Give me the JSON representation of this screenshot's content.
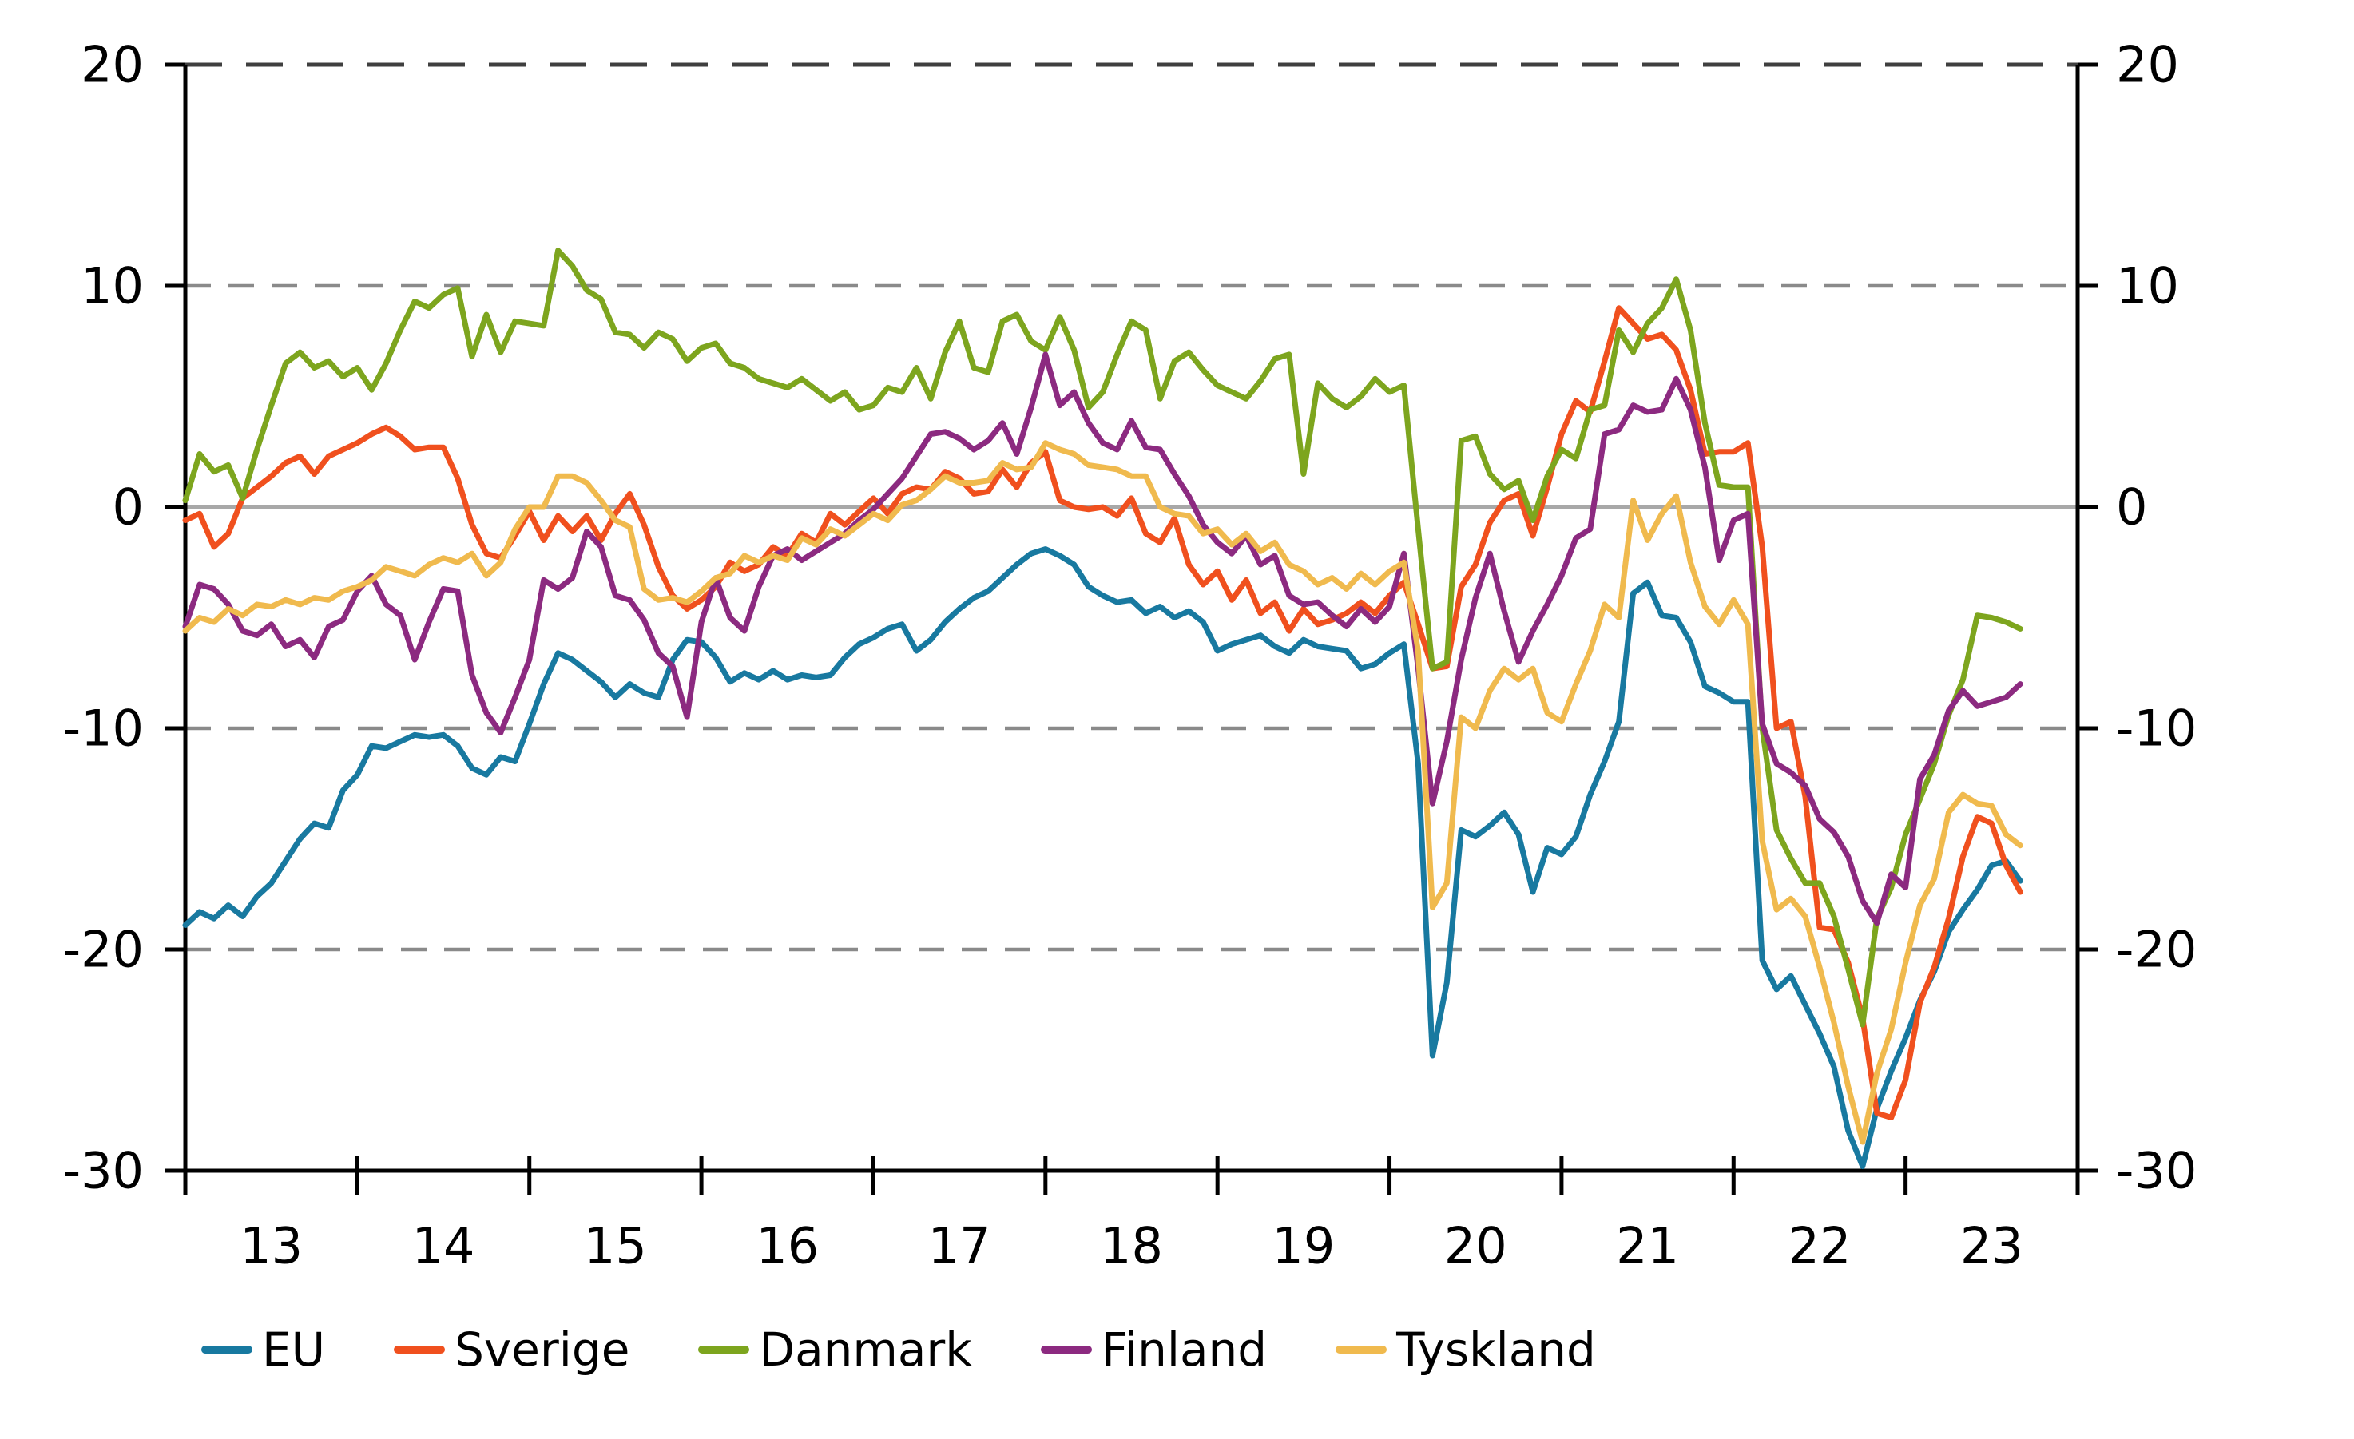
{
  "chart_data": {
    "type": "line",
    "title": "",
    "x_axis": {
      "start_month": "2013-01",
      "end_month": "2023-09",
      "axis_start_year": 2013,
      "axis_end_year": 2024,
      "tick_labels": [
        "13",
        "14",
        "15",
        "16",
        "17",
        "18",
        "19",
        "20",
        "21",
        "22",
        "23"
      ]
    },
    "y_axis": {
      "min": -30,
      "max": 20,
      "ticks": [
        20,
        10,
        0,
        -10,
        -20,
        -30
      ],
      "dashed_gridlines": [
        10,
        -10,
        -20
      ],
      "top_dashed_gridline": 20,
      "zero_line": 0
    },
    "style": {
      "frame_color": "#000000",
      "grid_color": "#8a8a8a",
      "top_grid_color": "#3f3f3f",
      "zero_line_color": "#a8a8a8",
      "background": "#ffffff"
    },
    "series": [
      {
        "name": "EU",
        "color": "#1879a0",
        "values": [
          -18.9,
          -18.3,
          -18.6,
          -18.0,
          -18.5,
          -17.6,
          -17.0,
          -16.0,
          -15.0,
          -14.3,
          -14.5,
          -12.8,
          -12.1,
          -10.8,
          -10.9,
          -10.6,
          -10.3,
          -10.4,
          -10.3,
          -10.8,
          -11.8,
          -12.1,
          -11.3,
          -11.5,
          -9.8,
          -8.0,
          -6.6,
          -6.9,
          -7.4,
          -7.9,
          -8.6,
          -8.0,
          -8.4,
          -8.6,
          -6.9,
          -6.0,
          -6.1,
          -6.8,
          -7.9,
          -7.5,
          -7.8,
          -7.4,
          -7.8,
          -7.6,
          -7.7,
          -7.6,
          -6.8,
          -6.2,
          -5.9,
          -5.5,
          -5.3,
          -6.5,
          -6.0,
          -5.2,
          -4.6,
          -4.1,
          -3.8,
          -3.2,
          -2.6,
          -2.1,
          -1.9,
          -2.2,
          -2.6,
          -3.6,
          -4.0,
          -4.3,
          -4.2,
          -4.8,
          -4.5,
          -5.0,
          -4.7,
          -5.2,
          -6.5,
          -6.2,
          -6.0,
          -5.8,
          -6.3,
          -6.6,
          -6.0,
          -6.3,
          -6.4,
          -6.5,
          -7.3,
          -7.1,
          -6.6,
          -6.2,
          -11.6,
          -24.8,
          -21.5,
          -14.6,
          -14.9,
          -14.4,
          -13.8,
          -14.8,
          -17.4,
          -15.4,
          -15.7,
          -14.9,
          -13.0,
          -11.5,
          -9.7,
          -3.9,
          -3.4,
          -4.9,
          -5.0,
          -6.1,
          -8.1,
          -8.4,
          -8.8,
          -8.8,
          -20.5,
          -21.8,
          -21.2,
          -22.5,
          -23.8,
          -25.3,
          -28.2,
          -29.8,
          -27.2,
          -25.5,
          -24.0,
          -22.3,
          -21.0,
          -19.2,
          -18.2,
          -17.3,
          -16.2,
          -16.0,
          -16.9
        ]
      },
      {
        "name": "Sverige",
        "color": "#f0501e",
        "values": [
          -0.6,
          -0.3,
          -1.8,
          -1.2,
          0.4,
          0.9,
          1.4,
          2.0,
          2.3,
          1.5,
          2.3,
          2.6,
          2.9,
          3.3,
          3.6,
          3.2,
          2.6,
          2.7,
          2.7,
          1.3,
          -0.8,
          -2.1,
          -2.3,
          -1.3,
          -0.2,
          -1.5,
          -0.4,
          -1.1,
          -0.4,
          -1.5,
          -0.3,
          0.6,
          -0.8,
          -2.7,
          -4.0,
          -4.6,
          -4.2,
          -3.6,
          -2.5,
          -2.9,
          -2.6,
          -1.8,
          -2.2,
          -1.2,
          -1.6,
          -0.3,
          -0.8,
          -0.2,
          0.4,
          -0.3,
          0.6,
          0.9,
          0.8,
          1.6,
          1.3,
          0.6,
          0.7,
          1.7,
          0.9,
          2.0,
          2.5,
          0.3,
          0.0,
          -0.1,
          0.0,
          -0.4,
          0.4,
          -1.2,
          -1.6,
          -0.5,
          -2.6,
          -3.5,
          -2.9,
          -4.2,
          -3.3,
          -4.8,
          -4.3,
          -5.6,
          -4.6,
          -5.3,
          -5.1,
          -4.8,
          -4.3,
          -4.8,
          -4.0,
          -3.4,
          -5.3,
          -7.3,
          -7.2,
          -3.6,
          -2.6,
          -0.7,
          0.3,
          0.6,
          -1.3,
          0.9,
          3.3,
          4.8,
          4.3,
          6.6,
          9.0,
          8.3,
          7.6,
          7.8,
          7.1,
          5.3,
          2.4,
          2.5,
          2.5,
          2.9,
          -1.8,
          -10.0,
          -9.7,
          -13.1,
          -19.0,
          -19.1,
          -20.6,
          -23.1,
          -27.4,
          -27.6,
          -25.9,
          -22.4,
          -20.8,
          -18.6,
          -15.8,
          -14.0,
          -14.3,
          -16.2,
          -17.4
        ]
      },
      {
        "name": "Danmark",
        "color": "#7da51e",
        "values": [
          0.3,
          2.4,
          1.6,
          1.9,
          0.4,
          2.6,
          4.6,
          6.5,
          7.0,
          6.3,
          6.6,
          5.9,
          6.3,
          5.3,
          6.5,
          8.0,
          9.3,
          9.0,
          9.6,
          9.9,
          6.8,
          8.7,
          7.0,
          8.4,
          8.3,
          8.2,
          11.6,
          10.9,
          9.8,
          9.4,
          7.9,
          7.8,
          7.2,
          7.9,
          7.6,
          6.6,
          7.2,
          7.4,
          6.5,
          6.3,
          5.8,
          5.6,
          5.4,
          5.8,
          5.3,
          4.8,
          5.2,
          4.4,
          4.6,
          5.4,
          5.2,
          6.3,
          4.9,
          7.0,
          8.4,
          6.3,
          6.1,
          8.4,
          8.7,
          7.5,
          7.1,
          8.6,
          7.1,
          4.5,
          5.2,
          6.9,
          8.4,
          8.0,
          4.9,
          6.6,
          7.0,
          6.2,
          5.5,
          5.2,
          4.9,
          5.7,
          6.7,
          6.9,
          1.5,
          5.6,
          4.9,
          4.5,
          5.0,
          5.8,
          5.2,
          5.5,
          -1.0,
          -7.3,
          -7.0,
          3.0,
          3.2,
          1.5,
          0.8,
          1.2,
          -0.6,
          1.4,
          2.6,
          2.2,
          4.4,
          4.6,
          8.0,
          7.0,
          8.3,
          9.0,
          10.3,
          8.0,
          3.8,
          1.0,
          0.9,
          0.9,
          -10.0,
          -14.6,
          -15.9,
          -17.0,
          -17.0,
          -18.5,
          -20.9,
          -23.4,
          -18.6,
          -17.2,
          -14.8,
          -13.2,
          -11.6,
          -9.4,
          -7.8,
          -4.9,
          -5.0,
          -5.2,
          -5.5
        ]
      },
      {
        "name": "Finland",
        "color": "#8c2a80",
        "values": [
          -5.4,
          -3.5,
          -3.7,
          -4.4,
          -5.6,
          -5.8,
          -5.3,
          -6.3,
          -6.0,
          -6.8,
          -5.4,
          -5.1,
          -3.8,
          -3.1,
          -4.4,
          -4.9,
          -6.9,
          -5.2,
          -3.7,
          -3.8,
          -7.6,
          -9.3,
          -10.2,
          -8.6,
          -6.9,
          -3.3,
          -3.7,
          -3.2,
          -1.1,
          -1.8,
          -4.0,
          -4.2,
          -5.1,
          -6.6,
          -7.2,
          -9.5,
          -5.2,
          -3.2,
          -5.0,
          -5.6,
          -3.6,
          -2.2,
          -1.9,
          -2.4,
          -2.0,
          -1.6,
          -1.2,
          -0.6,
          -0.1,
          0.6,
          1.3,
          2.3,
          3.3,
          3.4,
          3.1,
          2.6,
          3.0,
          3.8,
          2.4,
          4.5,
          6.9,
          4.6,
          5.2,
          3.8,
          2.9,
          2.6,
          3.9,
          2.7,
          2.6,
          1.5,
          0.5,
          -0.8,
          -1.6,
          -2.1,
          -1.3,
          -2.6,
          -2.2,
          -4.0,
          -4.4,
          -4.3,
          -4.9,
          -5.4,
          -4.6,
          -5.2,
          -4.5,
          -2.1,
          -7.3,
          -13.4,
          -10.6,
          -6.9,
          -4.1,
          -2.1,
          -4.7,
          -7.0,
          -5.6,
          -4.4,
          -3.1,
          -1.4,
          -1.0,
          3.3,
          3.5,
          4.6,
          4.3,
          4.4,
          5.8,
          4.4,
          1.8,
          -2.4,
          -0.6,
          -0.3,
          -9.8,
          -11.6,
          -12.0,
          -12.6,
          -14.1,
          -14.7,
          -15.8,
          -17.8,
          -18.8,
          -16.6,
          -17.2,
          -12.3,
          -11.2,
          -9.2,
          -8.3,
          -9.0,
          -8.8,
          -8.6,
          -8.0
        ]
      },
      {
        "name": "Tyskland",
        "color": "#f0ba4e",
        "values": [
          -5.6,
          -5.0,
          -5.2,
          -4.6,
          -4.9,
          -4.4,
          -4.5,
          -4.2,
          -4.4,
          -4.1,
          -4.2,
          -3.8,
          -3.6,
          -3.3,
          -2.7,
          -2.9,
          -3.1,
          -2.6,
          -2.3,
          -2.5,
          -2.1,
          -3.1,
          -2.5,
          -1.0,
          0.0,
          0.0,
          1.4,
          1.4,
          1.1,
          0.3,
          -0.6,
          -0.9,
          -3.7,
          -4.2,
          -4.1,
          -4.3,
          -3.8,
          -3.2,
          -3.0,
          -2.2,
          -2.5,
          -2.2,
          -2.4,
          -1.4,
          -1.7,
          -1.0,
          -1.3,
          -0.8,
          -0.3,
          -0.6,
          0.1,
          0.3,
          0.8,
          1.4,
          1.1,
          1.1,
          1.2,
          2.0,
          1.7,
          1.8,
          2.9,
          2.6,
          2.4,
          1.9,
          1.8,
          1.7,
          1.4,
          1.4,
          0.0,
          -0.3,
          -0.4,
          -1.2,
          -1.0,
          -1.7,
          -1.2,
          -2.0,
          -1.6,
          -2.6,
          -2.9,
          -3.5,
          -3.2,
          -3.7,
          -3.0,
          -3.5,
          -2.9,
          -2.5,
          -6.5,
          -18.1,
          -17.0,
          -9.5,
          -10.0,
          -8.3,
          -7.3,
          -7.8,
          -7.3,
          -9.3,
          -9.7,
          -8.0,
          -6.5,
          -4.4,
          -5.0,
          0.3,
          -1.5,
          -0.3,
          0.5,
          -2.5,
          -4.5,
          -5.3,
          -4.2,
          -5.3,
          -15.1,
          -18.2,
          -17.7,
          -18.5,
          -20.8,
          -23.3,
          -26.2,
          -28.7,
          -25.6,
          -23.6,
          -20.6,
          -18.0,
          -16.8,
          -13.8,
          -13.0,
          -13.4,
          -13.5,
          -14.8,
          -15.3
        ]
      }
    ],
    "legend_position": "bottom-left"
  }
}
